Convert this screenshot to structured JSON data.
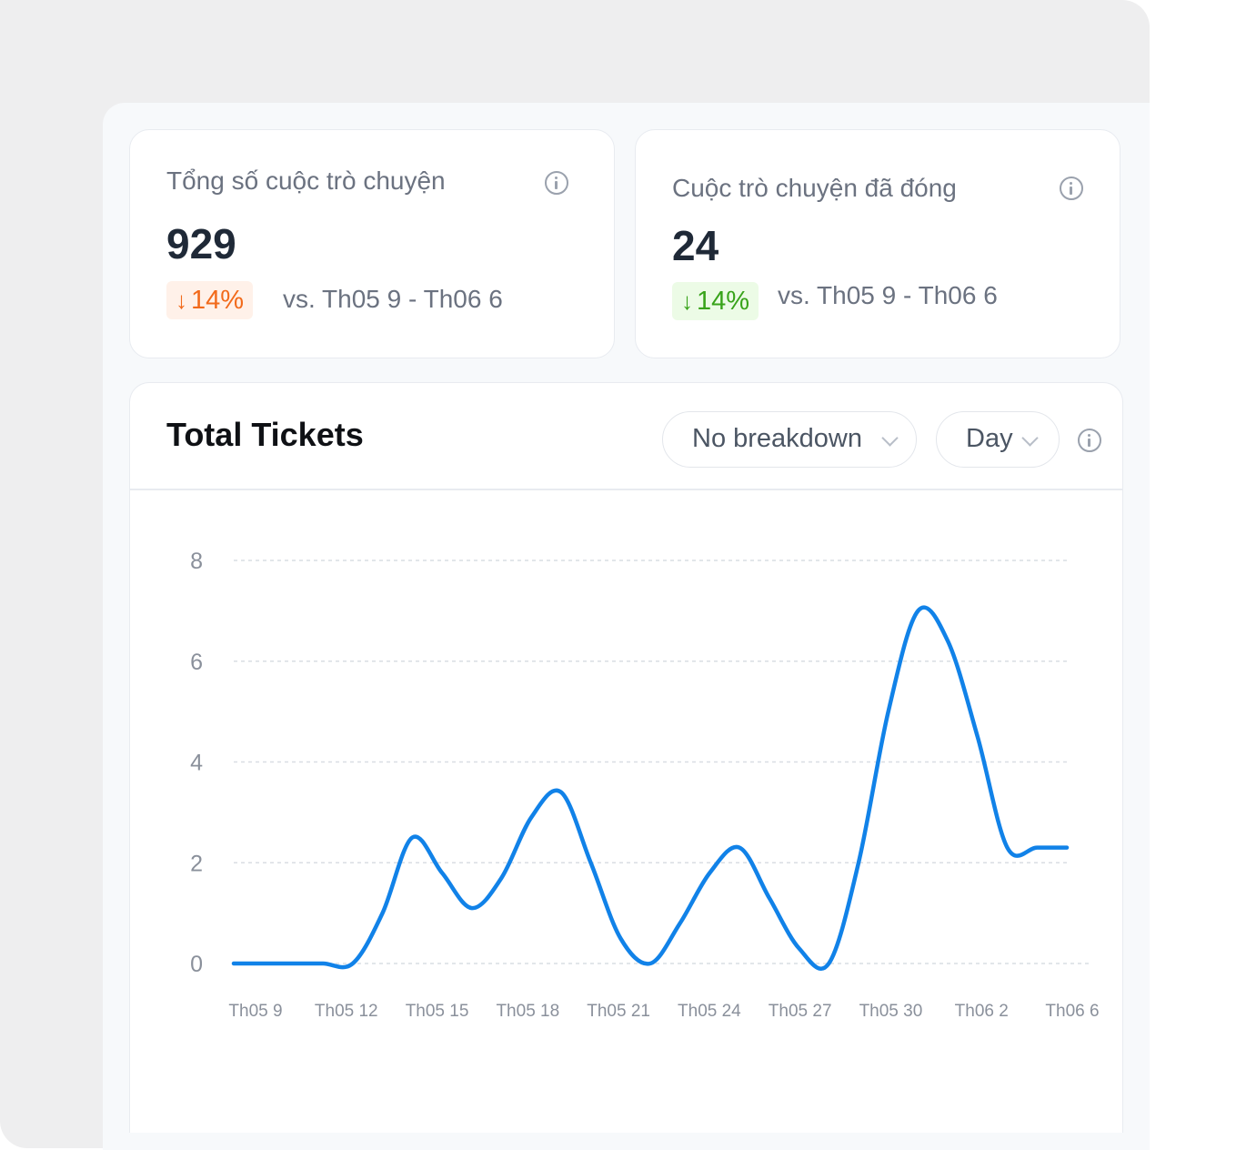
{
  "stats": [
    {
      "label": "Tổng số cuộc trò chuyện",
      "value": "929",
      "change": "14%",
      "change_direction": "down",
      "change_color": "#f26a1b",
      "compare": "vs. Th05 9 - Th06 6",
      "icon": "info-icon"
    },
    {
      "label": "Cuộc trò chuyện đã đóng",
      "value": "24",
      "change": "14%",
      "change_direction": "down",
      "change_color": "#38a31a",
      "compare": "vs. Th05 9 - Th06 6",
      "icon": "info-icon"
    }
  ],
  "chart_panel": {
    "title": "Total Tickets",
    "breakdown_select": "No breakdown",
    "interval_select": "Day",
    "icon": "info-icon"
  },
  "chart_data": {
    "type": "line",
    "title": "Total Tickets",
    "xlabel": "",
    "ylabel": "",
    "ylim": [
      0,
      8
    ],
    "yticks": [
      "0",
      "2",
      "4",
      "6",
      "8"
    ],
    "x_tick_labels": [
      "Th05 9",
      "Th05 12",
      "Th05 15",
      "Th05 18",
      "Th05 21",
      "Th05 24",
      "Th05 27",
      "Th05 30",
      "Th06 2",
      "Th06 6"
    ],
    "grid": true,
    "line_color": "#1182e8",
    "series": [
      {
        "x": [
          "Th05 9",
          "Th05 10",
          "Th05 11",
          "Th05 12",
          "Th05 13",
          "Th05 14",
          "Th05 15",
          "Th05 16",
          "Th05 17",
          "Th05 18",
          "Th05 19",
          "Th05 20",
          "Th05 21",
          "Th05 22",
          "Th05 23",
          "Th05 24",
          "Th05 25",
          "Th05 26",
          "Th05 27",
          "Th05 28",
          "Th05 29",
          "Th05 30",
          "Th05 31",
          "Th06 1",
          "Th06 2",
          "Th06 3",
          "Th06 4",
          "Th06 5",
          "Th06 6"
        ],
        "values": [
          0,
          0,
          0,
          0,
          0,
          1,
          2.5,
          1.8,
          1.1,
          1.7,
          2.9,
          3.4,
          2.0,
          0.5,
          0.0,
          0.8,
          1.8,
          2.3,
          1.3,
          0.3,
          0.0,
          2.0,
          5.0,
          7.0,
          6.4,
          4.5,
          2.3,
          2.3,
          2.3
        ]
      }
    ]
  }
}
